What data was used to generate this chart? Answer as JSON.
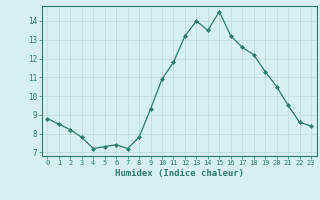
{
  "x": [
    0,
    1,
    2,
    3,
    4,
    5,
    6,
    7,
    8,
    9,
    10,
    11,
    12,
    13,
    14,
    15,
    16,
    17,
    18,
    19,
    20,
    21,
    22,
    23
  ],
  "y": [
    8.8,
    8.5,
    8.2,
    7.8,
    7.2,
    7.3,
    7.4,
    7.2,
    7.8,
    9.3,
    10.9,
    11.8,
    13.2,
    14.0,
    13.5,
    14.5,
    13.2,
    12.6,
    12.2,
    11.3,
    10.5,
    9.5,
    8.6,
    8.4
  ],
  "xlabel": "Humidex (Indice chaleur)",
  "ylabel_ticks": [
    7,
    8,
    9,
    10,
    11,
    12,
    13,
    14
  ],
  "xlim": [
    -0.5,
    23.5
  ],
  "ylim": [
    6.8,
    14.8
  ],
  "line_color": "#2d7d6e",
  "marker": "D",
  "marker_size": 2.0,
  "bg_color": "#d6f0ef",
  "grid_color": "#c0dede",
  "tick_label_color": "#2d7d6e",
  "xlabel_color": "#2d7d6e"
}
